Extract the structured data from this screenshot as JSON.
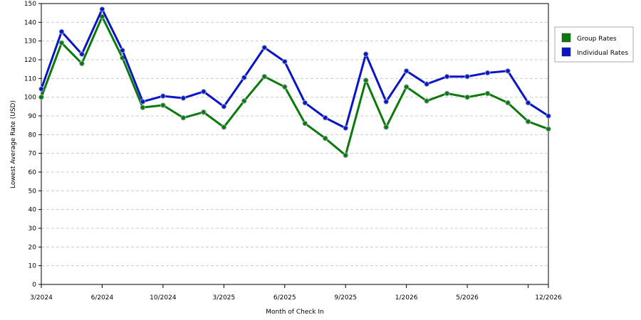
{
  "chart_data": {
    "type": "line",
    "x_label": "Month of Check In",
    "y_label": "Lowest Average Rate (USD)",
    "categories": [
      "3/2024",
      null,
      null,
      "6/2024",
      null,
      null,
      "10/2024",
      null,
      null,
      "3/2025",
      null,
      null,
      "6/2025",
      null,
      null,
      "9/2025",
      null,
      null,
      "1/2026",
      null,
      null,
      "5/2026",
      null,
      null,
      null,
      "12/2026"
    ],
    "series": [
      {
        "name": "Group Rates",
        "color": "#0a7a0a",
        "values": [
          100,
          129,
          118,
          143,
          121,
          94.5,
          95.7,
          89,
          92,
          84,
          98,
          111,
          105.5,
          86,
          78,
          69,
          109,
          84,
          105.5,
          98,
          102,
          100,
          102,
          97,
          87,
          83
        ]
      },
      {
        "name": "Individual Rates",
        "color": "#0a14c8",
        "values": [
          104.4,
          135,
          123,
          147,
          125,
          97.6,
          100.6,
          99.5,
          103,
          95,
          110.5,
          126.5,
          119,
          97,
          89,
          83.5,
          123,
          97.6,
          114,
          107,
          111,
          111,
          113,
          114,
          97,
          90
        ]
      }
    ],
    "ylim": [
      0,
      150
    ],
    "yticks": [
      0,
      10,
      20,
      30,
      40,
      50,
      60,
      70,
      80,
      90,
      100,
      110,
      120,
      130,
      140,
      150
    ],
    "grid": true,
    "legend": "right"
  }
}
